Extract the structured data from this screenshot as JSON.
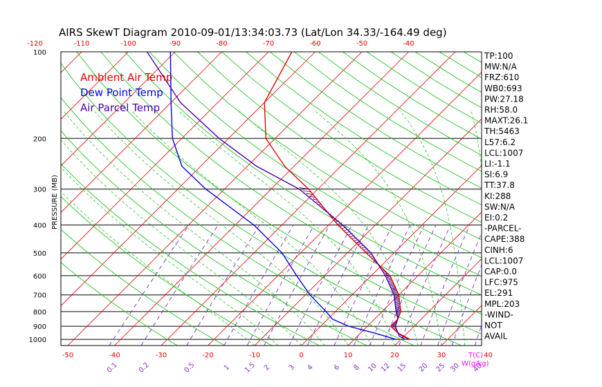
{
  "chart_data": {
    "type": "line",
    "title": "AIRS SkewT Diagram 2010-09-01/13:34:03.73 (Lat/Lon 34.33/-164.49 deg)",
    "ylabel": "PRESSURE (MB)",
    "xlabel": "T(C)",
    "mixing_label": "W(g/kg)",
    "pressure_ticks": [
      100,
      200,
      300,
      400,
      500,
      600,
      700,
      800,
      900,
      1000
    ],
    "bottom_temp_ticks": [
      -50,
      -40,
      -30,
      -20,
      -10,
      0,
      10,
      20,
      30,
      40
    ],
    "top_temp_ticks": [
      -120,
      -110,
      -100,
      -90,
      -80,
      -70,
      -60,
      -50,
      -40
    ],
    "mixing_ratio_ticks": [
      "0.1",
      "0.2",
      "0.5",
      "1",
      "1.5",
      "2",
      "3",
      "4",
      "6",
      "8",
      "10",
      "12",
      "15",
      "20",
      "25",
      "30",
      "40"
    ],
    "legend": [
      {
        "label": "Ambient Air Temp",
        "color": "#e60000"
      },
      {
        "label": "Dew Point Temp",
        "color": "#0000dd"
      },
      {
        "label": "Air Parcel Temp",
        "color": "#4a00a8"
      }
    ],
    "series": [
      {
        "name": "Ambient Air Temp",
        "color": "#e60000",
        "points": [
          [
            1000,
            22
          ],
          [
            950,
            18
          ],
          [
            900,
            15
          ],
          [
            850,
            15
          ],
          [
            800,
            14
          ],
          [
            700,
            10
          ],
          [
            600,
            4
          ],
          [
            500,
            -6
          ],
          [
            400,
            -18
          ],
          [
            300,
            -32
          ],
          [
            250,
            -42
          ],
          [
            200,
            -52
          ],
          [
            150,
            -60
          ],
          [
            100,
            -65
          ]
        ]
      },
      {
        "name": "Dew Point Temp",
        "color": "#0000dd",
        "points": [
          [
            1000,
            19
          ],
          [
            950,
            13
          ],
          [
            900,
            6
          ],
          [
            850,
            1
          ],
          [
            800,
            -2
          ],
          [
            700,
            -9
          ],
          [
            600,
            -16
          ],
          [
            500,
            -24
          ],
          [
            400,
            -36
          ],
          [
            300,
            -54
          ],
          [
            250,
            -64
          ],
          [
            200,
            -72
          ],
          [
            150,
            -80
          ],
          [
            100,
            -91
          ]
        ]
      },
      {
        "name": "Air Parcel Temp",
        "color": "#4a00a8",
        "points": [
          [
            1000,
            21
          ],
          [
            975,
            19
          ],
          [
            950,
            18
          ],
          [
            900,
            16
          ],
          [
            850,
            15
          ],
          [
            800,
            13
          ],
          [
            700,
            9
          ],
          [
            600,
            3
          ],
          [
            500,
            -5
          ],
          [
            400,
            -17
          ],
          [
            300,
            -34
          ],
          [
            250,
            -48
          ],
          [
            200,
            -62
          ],
          [
            150,
            -78
          ],
          [
            100,
            -96
          ]
        ]
      }
    ],
    "indices": [
      "TP:100",
      "MW:N/A",
      "FRZ:610",
      "WB0:693",
      "PW:27.18",
      "RH:58.0",
      "MAXT:26.1",
      "TH:5463",
      "L57:6.2",
      "LCL:1007",
      "LI:-1.1",
      "SI:6.9",
      "TT:37.8",
      "KI:288",
      "SW:N/A",
      "EI:0.2",
      "-PARCEL-",
      "CAPE:388",
      "CINH:6",
      "LCL:1007",
      "CAP:0.0",
      "LFC:975",
      "EL:291",
      "MPL:203",
      "-WIND-",
      "NOT",
      "AVAIL"
    ]
  }
}
